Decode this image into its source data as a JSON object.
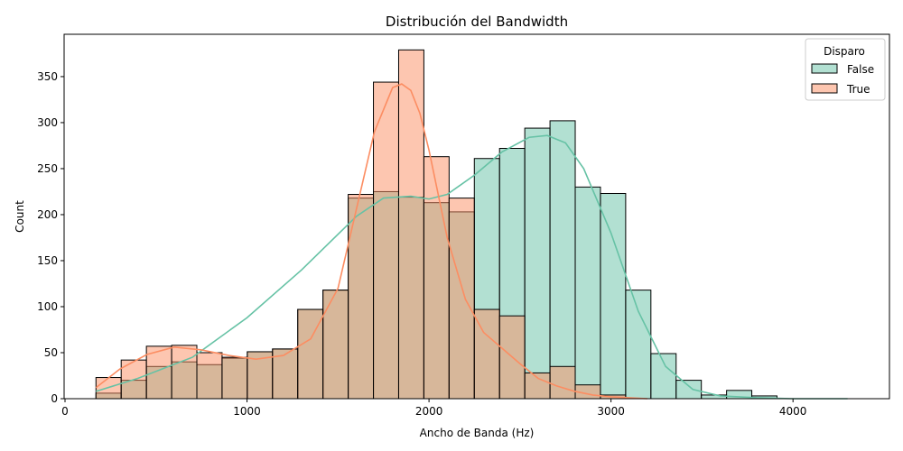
{
  "chart_data": {
    "type": "histogram",
    "title": "Distribución del Bandwidth",
    "xlabel": "Ancho de Banda (Hz)",
    "ylabel": "Count",
    "xlim": [
      -5,
      4530
    ],
    "ylim": [
      0,
      396
    ],
    "x_ticks": [
      0,
      1000,
      2000,
      3000,
      4000
    ],
    "y_ticks": [
      0,
      50,
      100,
      150,
      200,
      250,
      300,
      350
    ],
    "bin_edges": [
      170,
      308.6,
      447.2,
      585.8,
      724.4,
      863,
      1001.6,
      1140.2,
      1278.8,
      1417.4,
      1556,
      1694.6,
      1833.2,
      1971.8,
      2110.4,
      2249,
      2387.6,
      2526.2,
      2664.8,
      2803.4,
      2942,
      3080.6,
      3219.2,
      3357.8,
      3496.4,
      3635,
      3773.6,
      3912.2
    ],
    "legend": {
      "title": "Disparo",
      "position": "top-right"
    },
    "series": [
      {
        "name": "False",
        "color": "#66c2a5",
        "counts": [
          6,
          20,
          35,
          40,
          37,
          44,
          51,
          54,
          97,
          118,
          218,
          225,
          219,
          213,
          203,
          261,
          272,
          294,
          302,
          230,
          223,
          118,
          49,
          20,
          4,
          9,
          3
        ],
        "kde_x": [
          170,
          400,
          700,
          1000,
          1300,
          1600,
          1750,
          1900,
          2000,
          2100,
          2250,
          2400,
          2550,
          2650,
          2750,
          2850,
          3000,
          3150,
          3300,
          3450,
          3600,
          3800,
          4000,
          4300
        ],
        "kde_y": [
          8,
          22,
          45,
          88,
          140,
          198,
          218,
          220,
          217,
          222,
          243,
          268,
          284,
          286,
          278,
          250,
          180,
          95,
          35,
          10,
          3,
          1,
          0,
          0
        ]
      },
      {
        "name": "True",
        "color": "#fc8d62",
        "counts": [
          23,
          42,
          57,
          58,
          50,
          45,
          51,
          54,
          97,
          118,
          222,
          344,
          379,
          263,
          218,
          97,
          90,
          28,
          35,
          15,
          4,
          0,
          0,
          0,
          0,
          0,
          0
        ],
        "kde_x": [
          170,
          300,
          450,
          600,
          750,
          900,
          1050,
          1200,
          1350,
          1500,
          1600,
          1700,
          1800,
          1850,
          1900,
          1950,
          2000,
          2100,
          2200,
          2300,
          2400,
          2500,
          2600,
          2700,
          2800,
          2900,
          3000,
          3200
        ],
        "kde_y": [
          12,
          32,
          48,
          56,
          53,
          47,
          43,
          47,
          65,
          120,
          205,
          290,
          338,
          342,
          335,
          310,
          270,
          175,
          108,
          72,
          55,
          38,
          22,
          14,
          8,
          4,
          2,
          0
        ]
      }
    ]
  }
}
